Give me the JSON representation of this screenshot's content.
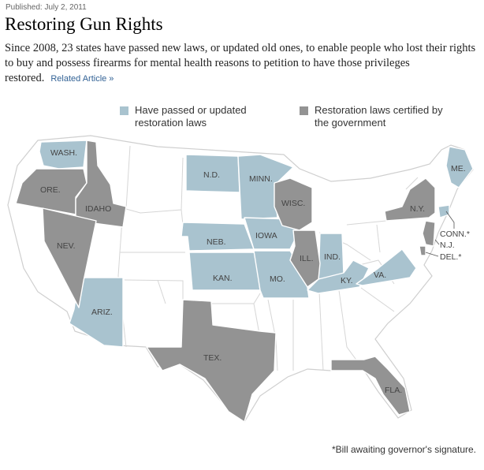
{
  "published": "Published: July 2, 2011",
  "title": "Restoring Gun Rights",
  "description": "Since 2008, 23 states have passed new laws, or updated old ones, to enable people who lost their rights to buy and possess firearms for mental health reasons to petition to have those privileges restored.",
  "related_link": "Related Article »",
  "colors": {
    "passed": "#a9c3cf",
    "certified": "#939393",
    "none": "#ffffff",
    "border": "#d6d6d6"
  },
  "legend": {
    "passed": "Have passed or updated restoration laws",
    "certified": "Restoration laws certified by the government"
  },
  "states": {
    "wa": "WASH.",
    "or": "ORE.",
    "id": "IDAHO",
    "nv": "NEV.",
    "az": "ARIZ.",
    "nd": "N.D.",
    "mn": "MINN.",
    "wi": "WISC.",
    "ne": "NEB.",
    "ia": "IOWA",
    "ks": "KAN.",
    "mo": "MO.",
    "il": "ILL.",
    "in": "IND.",
    "ky": "KY.",
    "va": "VA.",
    "ny": "N.Y.",
    "me": "ME.",
    "tx": "TEX.",
    "fl": "FLA.",
    "ct": "CONN.*",
    "nj": "N.J.",
    "de": "DEL.*"
  },
  "footnote": "*Bill awaiting governor's signature."
}
